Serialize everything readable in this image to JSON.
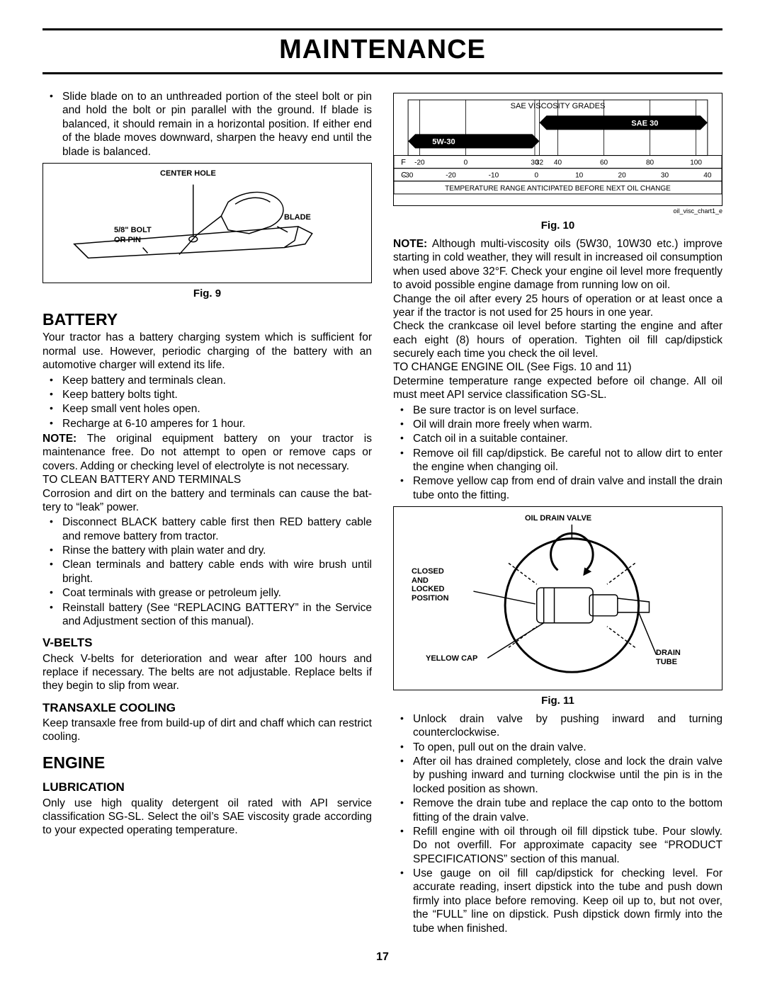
{
  "page": {
    "title": "MAINTENANCE",
    "number": "17"
  },
  "left": {
    "slide_blade": "Slide blade on to an unthreaded portion of the steel bolt or pin and hold the bolt or pin parallel with the ground. If blade is balanced, it should remain in a horizontal position.  If either end of the blade moves downward, sharpen the heavy end until the blade is balanced.",
    "fig9": {
      "caption": "Fig. 9",
      "labels": {
        "center_hole": "CENTER HOLE",
        "blade": "BLADE",
        "bolt_pin": "5/8\" BOLT\nOR PIN"
      }
    },
    "battery": {
      "heading": "BATTERY",
      "intro": "Your tractor has a battery charging system which is sufficient for normal use.  However, periodic charging of the battery with an automotive charger will extend its life.",
      "bullets1": [
        "Keep battery and terminals clean.",
        "Keep battery bolts tight.",
        "Keep small vent holes open.",
        "Recharge at  6-10 amperes for 1 hour."
      ],
      "note": "NOTE: The original equipment battery on your tractor is maintenance free. Do not attempt to open or remove caps or covers. Adding or checking level of electrolyte is not necessary.",
      "clean_head": "TO CLEAN BATTERY AND TERMINALS",
      "clean_intro": "Corrosion and dirt on the battery and terminals can cause the bat­tery to “leak” power.",
      "bullets2": [
        "Disconnect BLACK battery cable first  then RED  battery cable and remove battery from tractor.",
        "Rinse the battery with plain water and dry.",
        "Clean terminals and battery cable ends with wire brush until bright.",
        "Coat terminals with grease or petroleum jelly.",
        "Reinstall battery (See “REPLACING BATTERY” in the Service and Adjustment section of this manual)."
      ]
    },
    "vbelts": {
      "heading": "V-BELTS",
      "body": "Check V-belts for deterioration and wear after 100 hours and replace if necessary. The belts are not adjustable. Replace belts if they begin to slip from wear."
    },
    "transaxle": {
      "heading": "TRANSAXLE COOLING",
      "body": "Keep transaxle free from build-up of dirt and chaff which can restrict cooling."
    },
    "engine": {
      "heading": "ENGINE",
      "lub_heading": "LUBRICATION",
      "lub_body": "Only use high quality detergent oil rated with API service classification SG-SL.  Select the oil’s SAE viscosity grade according to your expected operating temperature."
    }
  },
  "right": {
    "chart": {
      "type": "temperature-range-bar",
      "title": "SAE VISCOSITY GRADES",
      "caption": "Fig. 10",
      "credit": "oil_visc_chart1_e",
      "bars": [
        {
          "label": "SAE 30",
          "f_start": 32,
          "f_end": 105,
          "color": "#000000",
          "text_color": "#ffffff"
        },
        {
          "label": "5W-30",
          "f_start": -25,
          "f_end": 32,
          "color": "#000000",
          "text_color": "#ffffff"
        }
      ],
      "f_row": {
        "label": "F",
        "ticks": [
          "-20",
          "0",
          "30",
          "32",
          "40",
          "60",
          "80",
          "100"
        ]
      },
      "c_row": {
        "label": "C",
        "ticks": [
          "-30",
          "-20",
          "-10",
          "0",
          "10",
          "20",
          "30",
          "40"
        ]
      },
      "footer": "TEMPERATURE RANGE ANTICIPATED BEFORE NEXT OIL CHANGE",
      "xlim_f": [
        -25,
        105
      ],
      "grid_color": "#000000",
      "background_color": "#ffffff",
      "label_fontsize": 10
    },
    "note": "NOTE:  Although multi-viscosity oils (5W30, 10W30 etc.) improve starting in cold weather, they will result in increased oil consumption when used above 32°F.  Check your engine oil level more frequently to avoid possible engine damage from running low on oil.",
    "change_p1": "Change the oil after every 25 hours of operation or at least once a year if the tractor is not used for 25 hours in one year.",
    "change_p2": "Check the crankcase oil level before starting the engine and after each eight (8) hours of operation.  Tighten oil fill cap/dipstick securely each time you check the oil level.",
    "change_head": "TO CHANGE ENGINE OIL (See Figs. 10 and 11)",
    "change_p3": "Determine temperature range expected before oil change. All oil must meet API service classification SG-SL.",
    "bullets1": [
      "Be sure tractor is on level surface.",
      "Oil will drain more freely when warm.",
      "Catch oil in a suitable container.",
      "Remove oil fill cap/dipstick.  Be careful not to allow dirt to enter the engine when changing oil.",
      "Remove yellow cap from end of drain valve and install the drain tube onto the fitting."
    ],
    "fig11": {
      "caption": "Fig. 11",
      "labels": {
        "valve": "OIL DRAIN VALVE",
        "closed": "CLOSED\nAND\nLOCKED\nPOSITION",
        "yellow_cap": "YELLOW CAP",
        "drain_tube": "DRAIN\nTUBE"
      }
    },
    "bullets2": [
      "Unlock drain valve by pushing inward and turning counterclockwise.",
      "To open, pull out on the drain valve.",
      "After oil has drained completely, close and lock the drain valve by pushing inward and turning clockwise until the pin is in the locked position as shown.",
      "Remove the drain tube and replace the cap onto to the bottom fitting of the drain valve.",
      "Refill engine with oil through oil fill dipstick tube.  Pour slowly.  Do not overfill.  For approximate capacity see “PRODUCT SPECIFICATIONS” section of this manual.",
      "Use gauge on oil fill cap/dipstick for checking level. For accurate reading, insert dipstick into the tube and push down firmly into place before removing. Keep oil up to, but not over, the “FULL” line on dipstick. Push dipstick down firmly into the tube when finished."
    ]
  }
}
